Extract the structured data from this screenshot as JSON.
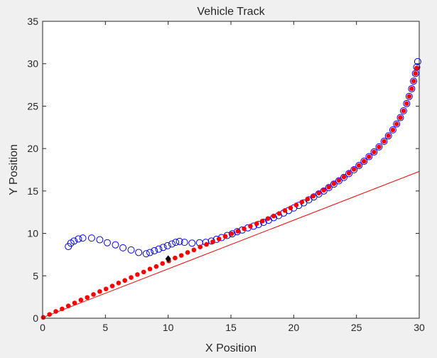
{
  "chart_data": {
    "type": "scatter",
    "title": "Vehicle Track",
    "xlabel": "X Position",
    "ylabel": "Y Position",
    "xlim": [
      0,
      30
    ],
    "ylim": [
      0,
      35
    ],
    "xticks": [
      0,
      5,
      10,
      15,
      20,
      25,
      30
    ],
    "yticks": [
      0,
      5,
      10,
      15,
      20,
      25,
      30,
      35
    ],
    "grid": false,
    "colors": {
      "measured": "#0000ff",
      "estimated": "#ff0000",
      "marker": "#000000"
    },
    "series": [
      {
        "style": "open-circle",
        "color": "#0000ff",
        "points": [
          [
            2.05,
            8.45
          ],
          [
            2.25,
            8.85
          ],
          [
            2.5,
            9.1
          ],
          [
            2.85,
            9.35
          ],
          [
            3.2,
            9.45
          ],
          [
            3.9,
            9.45
          ],
          [
            4.55,
            9.25
          ],
          [
            5.15,
            8.9
          ],
          [
            5.8,
            8.65
          ],
          [
            6.4,
            8.3
          ],
          [
            7.05,
            8.05
          ],
          [
            7.65,
            7.75
          ],
          [
            8.25,
            7.6
          ],
          [
            8.55,
            7.75
          ],
          [
            8.9,
            7.95
          ],
          [
            9.25,
            8.15
          ],
          [
            9.6,
            8.35
          ],
          [
            9.95,
            8.55
          ],
          [
            10.3,
            8.75
          ],
          [
            10.6,
            8.95
          ],
          [
            10.9,
            9.05
          ],
          [
            11.3,
            8.95
          ],
          [
            11.9,
            8.85
          ],
          [
            12.5,
            8.9
          ],
          [
            13.0,
            8.95
          ],
          [
            13.45,
            9.1
          ],
          [
            13.85,
            9.3
          ],
          [
            14.25,
            9.5
          ],
          [
            14.7,
            9.75
          ],
          [
            15.1,
            9.95
          ],
          [
            15.5,
            10.2
          ],
          [
            15.9,
            10.4
          ],
          [
            16.35,
            10.65
          ],
          [
            16.8,
            10.85
          ],
          [
            17.2,
            11.05
          ],
          [
            17.6,
            11.3
          ],
          [
            18.0,
            11.55
          ],
          [
            18.4,
            11.85
          ],
          [
            18.8,
            12.1
          ],
          [
            19.2,
            12.4
          ],
          [
            19.6,
            12.7
          ],
          [
            20.0,
            13.0
          ],
          [
            20.4,
            13.3
          ],
          [
            20.8,
            13.6
          ],
          [
            21.2,
            13.95
          ],
          [
            21.6,
            14.3
          ],
          [
            22.0,
            14.65
          ],
          [
            22.4,
            15.0
          ],
          [
            22.8,
            15.4
          ],
          [
            23.2,
            15.8
          ],
          [
            23.6,
            16.2
          ],
          [
            24.0,
            16.6
          ],
          [
            24.4,
            17.05
          ],
          [
            24.8,
            17.5
          ],
          [
            25.2,
            18.0
          ],
          [
            25.6,
            18.5
          ],
          [
            26.0,
            19.05
          ],
          [
            26.4,
            19.6
          ],
          [
            26.8,
            20.2
          ],
          [
            27.2,
            20.85
          ],
          [
            27.55,
            21.5
          ],
          [
            27.9,
            22.2
          ],
          [
            28.2,
            22.9
          ],
          [
            28.5,
            23.65
          ],
          [
            28.75,
            24.45
          ],
          [
            29.0,
            25.3
          ],
          [
            29.2,
            26.15
          ],
          [
            29.4,
            27.05
          ],
          [
            29.55,
            27.95
          ],
          [
            29.7,
            28.85
          ],
          [
            29.8,
            29.6
          ],
          [
            29.88,
            30.25
          ]
        ]
      },
      {
        "style": "filled-dot",
        "color": "#ff0000",
        "points": [
          [
            0.05,
            0.1
          ],
          [
            0.55,
            0.45
          ],
          [
            1.05,
            0.8
          ],
          [
            1.55,
            1.1
          ],
          [
            2.05,
            1.45
          ],
          [
            2.55,
            1.8
          ],
          [
            3.05,
            2.15
          ],
          [
            3.55,
            2.45
          ],
          [
            4.05,
            2.8
          ],
          [
            4.55,
            3.15
          ],
          [
            5.05,
            3.45
          ],
          [
            5.55,
            3.8
          ],
          [
            6.05,
            4.15
          ],
          [
            6.55,
            4.45
          ],
          [
            7.05,
            4.8
          ],
          [
            7.55,
            5.15
          ],
          [
            8.05,
            5.45
          ],
          [
            8.55,
            5.8
          ],
          [
            9.05,
            6.1
          ],
          [
            9.55,
            6.45
          ],
          [
            10.05,
            6.75
          ],
          [
            10.55,
            7.1
          ],
          [
            11.05,
            7.4
          ],
          [
            11.55,
            7.75
          ],
          [
            12.05,
            8.05
          ],
          [
            12.55,
            8.4
          ],
          [
            13.05,
            8.7
          ],
          [
            13.55,
            9.0
          ],
          [
            14.05,
            9.35
          ],
          [
            14.55,
            9.65
          ],
          [
            15.05,
            9.95
          ],
          [
            15.55,
            10.25
          ],
          [
            16.05,
            10.55
          ],
          [
            16.55,
            10.85
          ],
          [
            17.05,
            11.15
          ],
          [
            17.5,
            11.45
          ],
          [
            17.95,
            11.75
          ],
          [
            18.4,
            12.05
          ],
          [
            18.85,
            12.35
          ],
          [
            19.3,
            12.7
          ],
          [
            19.75,
            13.0
          ],
          [
            20.2,
            13.35
          ],
          [
            20.65,
            13.7
          ],
          [
            21.1,
            14.05
          ],
          [
            21.55,
            14.4
          ],
          [
            22.0,
            14.75
          ],
          [
            22.4,
            15.1
          ],
          [
            22.8,
            15.45
          ],
          [
            23.2,
            15.85
          ],
          [
            23.6,
            16.25
          ],
          [
            24.0,
            16.65
          ],
          [
            24.4,
            17.1
          ],
          [
            24.8,
            17.55
          ],
          [
            25.2,
            18.0
          ],
          [
            25.6,
            18.5
          ],
          [
            26.0,
            19.05
          ],
          [
            26.4,
            19.6
          ],
          [
            26.8,
            20.2
          ],
          [
            27.2,
            20.85
          ],
          [
            27.55,
            21.5
          ],
          [
            27.9,
            22.2
          ],
          [
            28.2,
            22.9
          ],
          [
            28.5,
            23.65
          ],
          [
            28.75,
            24.45
          ],
          [
            29.0,
            25.3
          ],
          [
            29.2,
            26.15
          ],
          [
            29.4,
            27.05
          ],
          [
            29.55,
            27.95
          ],
          [
            29.7,
            28.85
          ],
          [
            29.8,
            29.5
          ]
        ]
      },
      {
        "style": "line",
        "color": "#ff0000",
        "points": [
          [
            29.8,
            29.5
          ],
          [
            30.0,
            29.3
          ],
          [
            30.0,
            17.3
          ],
          [
            0.05,
            0.1
          ]
        ]
      },
      {
        "style": "filled-diamond",
        "color": "#000000",
        "points": [
          [
            10.0,
            7.0
          ]
        ]
      }
    ]
  }
}
